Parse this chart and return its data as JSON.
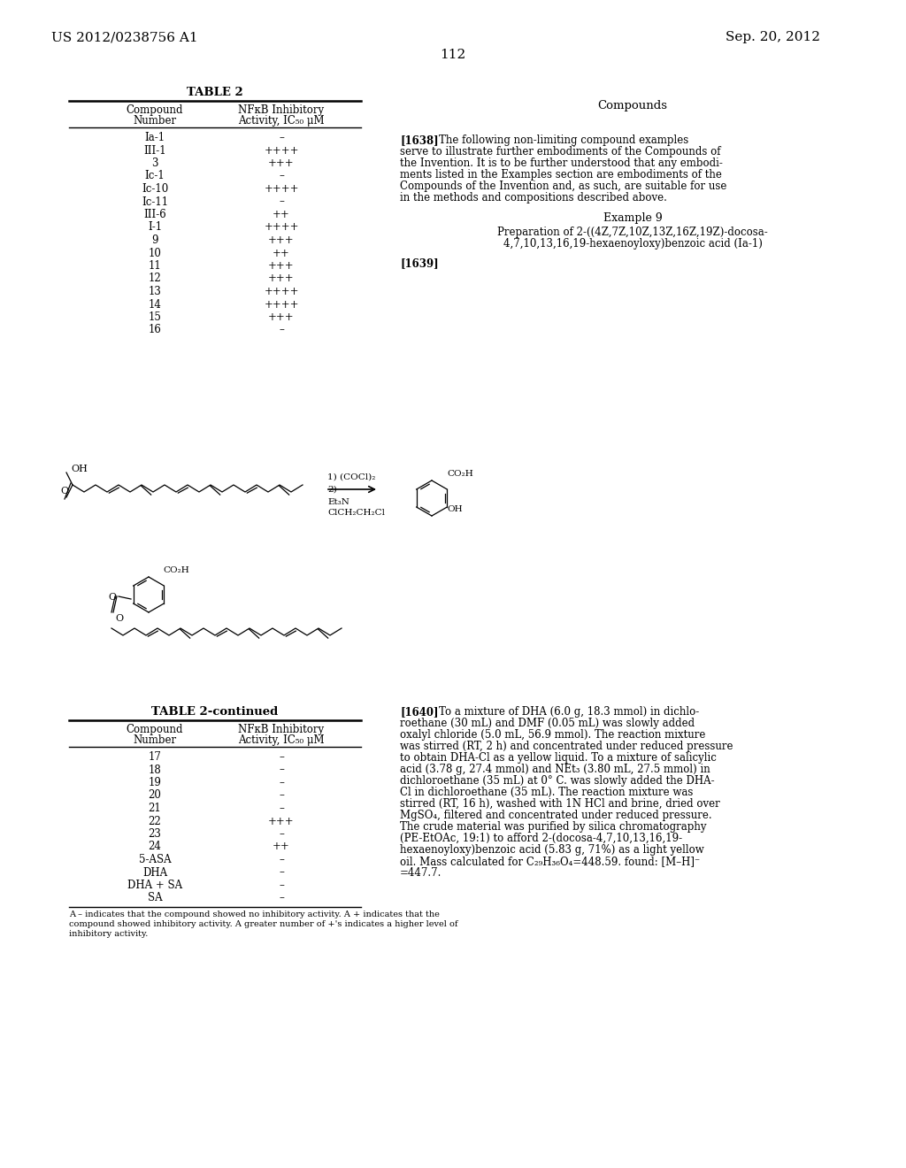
{
  "bg_color": "#ffffff",
  "header_left": "US 2012/0238756 A1",
  "header_right": "Sep. 20, 2012",
  "page_number": "112",
  "table2_title": "TABLE 2",
  "table2_rows": [
    [
      "Ia-1",
      "–"
    ],
    [
      "III-1",
      "++++"
    ],
    [
      "3",
      "+++"
    ],
    [
      "Ic-1",
      "–"
    ],
    [
      "Ic-10",
      "++++"
    ],
    [
      "Ic-11",
      "–"
    ],
    [
      "III-6",
      "++"
    ],
    [
      "I-1",
      "++++"
    ],
    [
      "9",
      "+++"
    ],
    [
      "10",
      "++"
    ],
    [
      "11",
      "+++"
    ],
    [
      "12",
      "+++"
    ],
    [
      "13",
      "++++"
    ],
    [
      "14",
      "++++"
    ],
    [
      "15",
      "+++"
    ],
    [
      "16",
      "–"
    ]
  ],
  "right_col_title": "Compounds",
  "para1638_lines": [
    "The following non-limiting compound examples",
    "serve to illustrate further embodiments of the Compounds of",
    "the Invention. It is to be further understood that any embodi-",
    "ments listed in the Examples section are embodiments of the",
    "Compounds of the Invention and, as such, are suitable for use",
    "in the methods and compositions described above."
  ],
  "example9_title": "Example 9",
  "example9_sub1": "Preparation of 2-((4Z,7Z,10Z,13Z,16Z,19Z)-docosa-",
  "example9_sub2": "4,7,10,13,16,19-hexaenoyloxy)benzoic acid (Ia-1)",
  "para1639_label": "[1639]",
  "rxn_label1": "1) (COCl)₂",
  "rxn_label2": "2)",
  "rxn_label3": "Et₃N",
  "rxn_label4": "ClCH₂CH₂Cl",
  "table2cont_title": "TABLE 2-continued",
  "table2cont_rows": [
    [
      "17",
      "–"
    ],
    [
      "18",
      "–"
    ],
    [
      "19",
      "–"
    ],
    [
      "20",
      "–"
    ],
    [
      "21",
      "–"
    ],
    [
      "22",
      "+++"
    ],
    [
      "23",
      "–"
    ],
    [
      "24",
      "++"
    ],
    [
      "5-ASA",
      "–"
    ],
    [
      "DHA",
      "–"
    ],
    [
      "DHA + SA",
      "–"
    ],
    [
      "SA",
      "–"
    ]
  ],
  "footnote_lines": [
    "A – indicates that the compound showed no inhibitory activity. A + indicates that the",
    "compound showed inhibitory activity. A greater number of +'s indicates a higher level of",
    "inhibitory activity."
  ],
  "para1640_lines": [
    "To a mixture of DHA (6.0 g, 18.3 mmol) in dichlo-",
    "roethane (30 mL) and DMF (0.05 mL) was slowly added",
    "oxalyl chloride (5.0 mL, 56.9 mmol). The reaction mixture",
    "was stirred (RT, 2 h) and concentrated under reduced pressure",
    "to obtain DHA-Cl as a yellow liquid. To a mixture of salicylic",
    "acid (3.78 g, 27.4 mmol) and NEt₃ (3.80 mL, 27.5 mmol) in",
    "dichloroethane (35 mL) at 0° C. was slowly added the DHA-",
    "Cl in dichloroethane (35 mL). The reaction mixture was",
    "stirred (RT, 16 h), washed with 1N HCl and brine, dried over",
    "MgSO₄, filtered and concentrated under reduced pressure.",
    "The crude material was purified by silica chromatography",
    "(PE-EtOAc, 19:1) to afford 2-(docosa-4,7,10,13,16,19-",
    "hexaenoyloxy)benzoic acid (5.83 g, 71%) as a light yellow",
    "oil. Mass calculated for C₂₉H₃₆O₄=448.59. found: [M–H]⁻",
    "=447.7."
  ]
}
